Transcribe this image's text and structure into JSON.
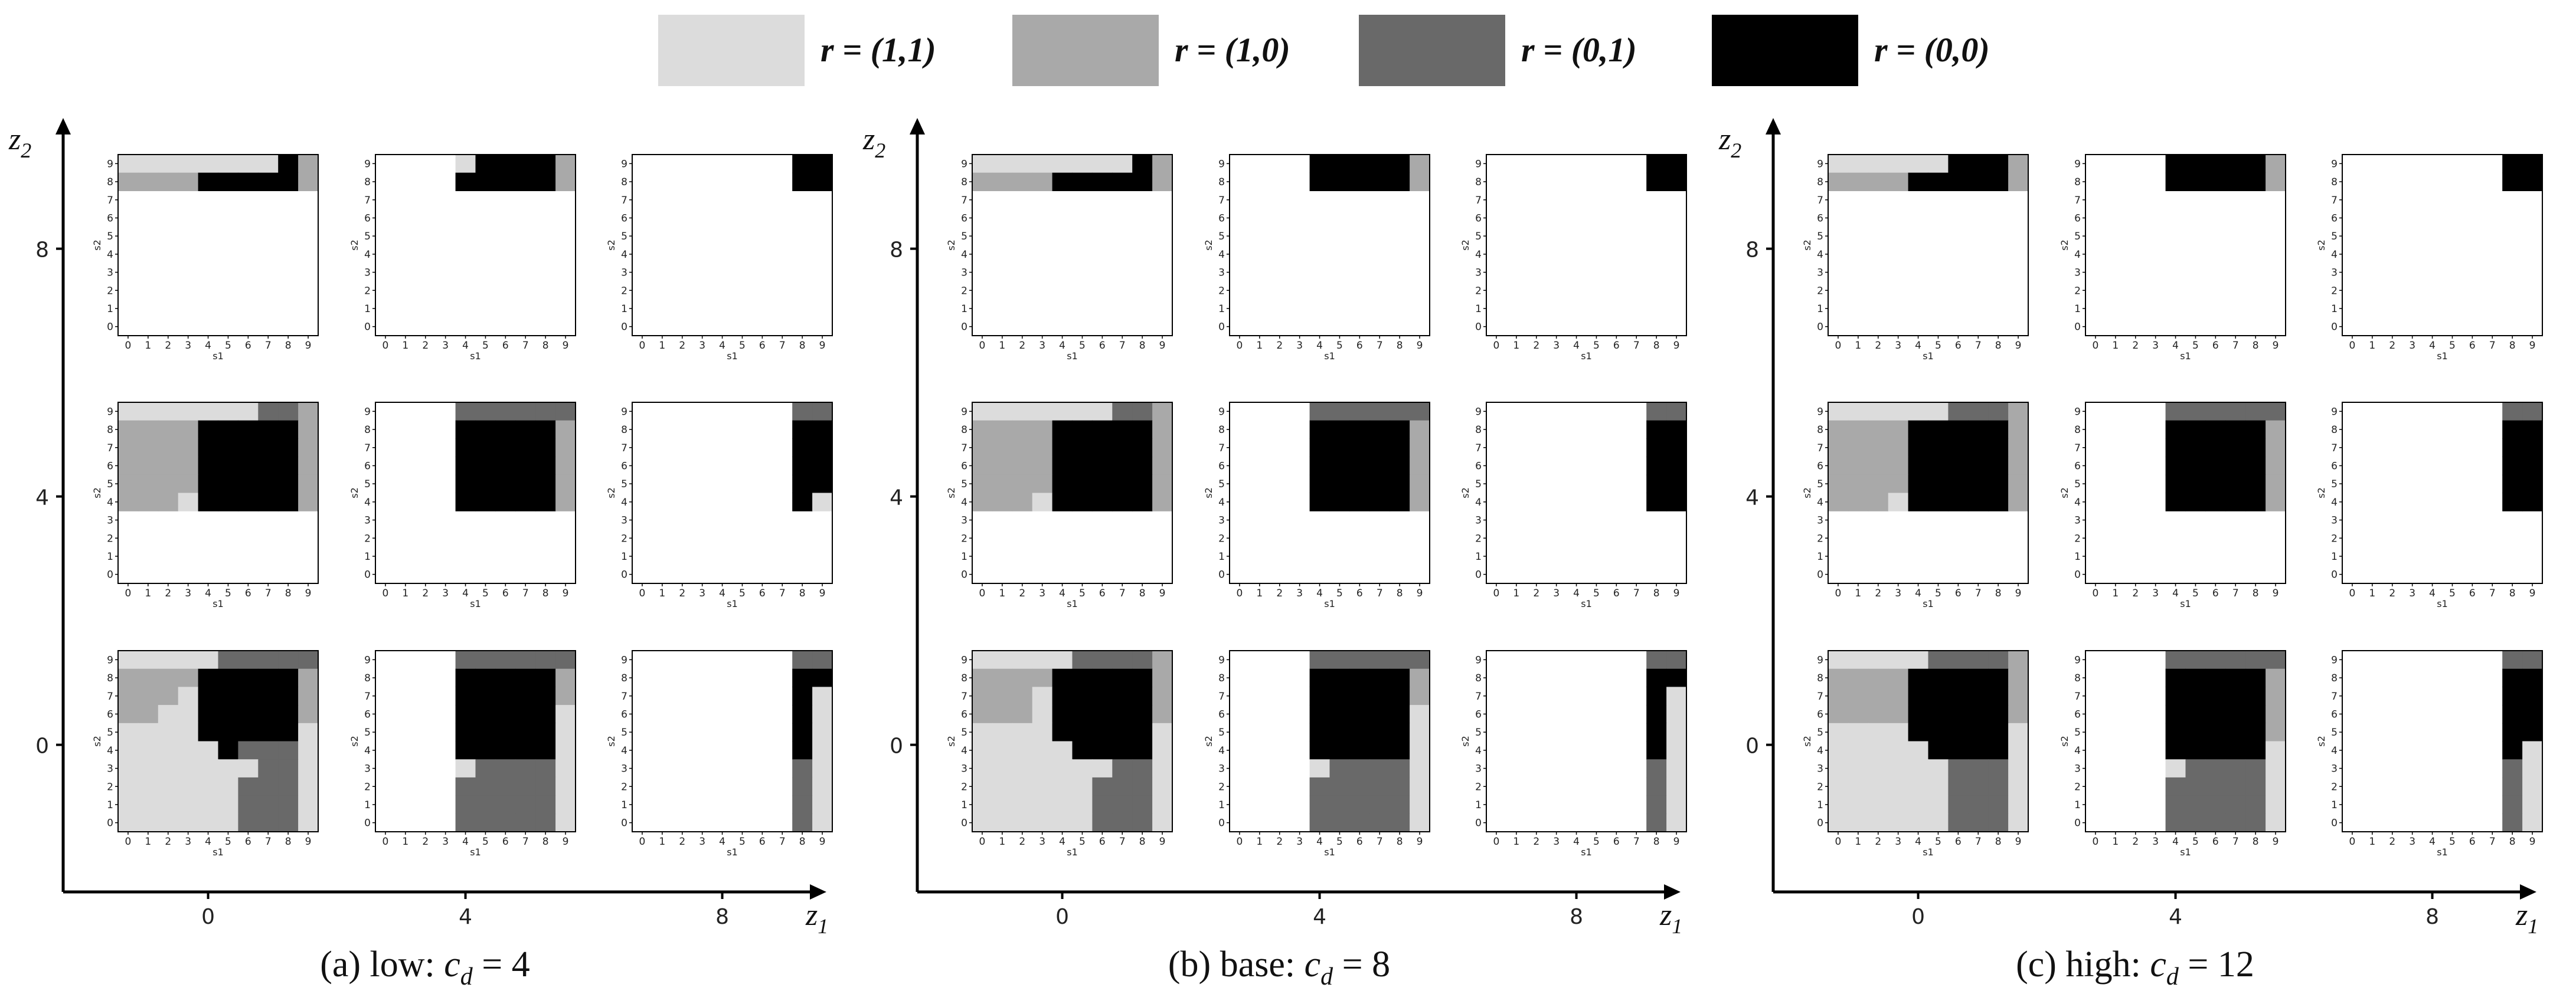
{
  "legend": [
    {
      "code": "11",
      "label": "r = (1,1)",
      "color": "#dcdcdc"
    },
    {
      "code": "10",
      "label": "r = (1,0)",
      "color": "#a9a9a9"
    },
    {
      "code": "01",
      "label": "r = (0,1)",
      "color": "#696969"
    },
    {
      "code": "00",
      "label": "r = (0,0)",
      "color": "#000000"
    }
  ],
  "chart_data": [
    {
      "type": "heatmap",
      "caption": "(a) low: c_d = 4",
      "outer_axes": {
        "xlabel": "z1",
        "ylabel": "z2",
        "xticks": [
          "0",
          "4",
          "8"
        ],
        "yticks": [
          "8",
          "4",
          "0"
        ]
      },
      "subplot_axes": {
        "xlabel": "s1",
        "ylabel": "s2",
        "ticks": [
          "0",
          "1",
          "2",
          "3",
          "4",
          "5",
          "6",
          "7",
          "8",
          "9"
        ]
      },
      "cells_note": "grid rows listed from s2=9 (top) down to s2=0; each string gives s1=0..9; A=(1,1) B=(1,0) C=(0,1) D=(0,0) .=none",
      "panels": [
        {
          "z1": 0,
          "z2": 8,
          "grid": [
            "AAAAAAAADB",
            "BBBBDDDDDB",
            "..........",
            "..........",
            "..........",
            "..........",
            "..........",
            "..........",
            "..........",
            ".........."
          ]
        },
        {
          "z1": 4,
          "z2": 8,
          "grid": [
            "....ADDDDB",
            "....DDDDDB",
            "..........",
            "..........",
            "..........",
            "..........",
            "..........",
            "..........",
            "..........",
            ".........."
          ]
        },
        {
          "z1": 8,
          "z2": 8,
          "grid": [
            "........DD",
            "........DD",
            "..........",
            "..........",
            "..........",
            "..........",
            "..........",
            "..........",
            "..........",
            ".........."
          ]
        },
        {
          "z1": 0,
          "z2": 4,
          "grid": [
            "AAAAAAACCB",
            "BBBBDDDDDB",
            "BBBBDDDDDB",
            "BBBBDDDDDB",
            "BBBBDDDDDB",
            "BBBADDDDDB",
            "..........",
            "..........",
            "..........",
            ".........."
          ]
        },
        {
          "z1": 4,
          "z2": 4,
          "grid": [
            "....CCCCCC",
            "....DDDDDB",
            "....DDDDDB",
            "....DDDDDB",
            "....DDDDDB",
            "....DDDDDB",
            "..........",
            "..........",
            "..........",
            ".........."
          ]
        },
        {
          "z1": 8,
          "z2": 4,
          "grid": [
            "........CC",
            "........DD",
            "........DD",
            "........DD",
            "........DD",
            "........DA",
            "..........",
            "..........",
            "..........",
            ".........."
          ]
        },
        {
          "z1": 0,
          "z2": 0,
          "grid": [
            "AAAAACCCCC",
            "BBBBDDDDDB",
            "BBBADDDDDB",
            "BBAADDDDDB",
            "AAAADDDDDA",
            "AAAAADCCCA",
            "AAAAAAACCA",
            "AAAAAACCCA",
            "AAAAAACCCA",
            "AAAAAACCCA"
          ]
        },
        {
          "z1": 4,
          "z2": 0,
          "grid": [
            "....CCCCCC",
            "....DDDDDB",
            "....DDDDDB",
            "....DDDDDA",
            "....DDDDDA",
            "....DDDDDA",
            "....ACCCCA",
            "....CCCCCA",
            "....CCCCCA",
            "....CCCCCA"
          ]
        },
        {
          "z1": 8,
          "z2": 0,
          "grid": [
            "........CC",
            "........DD",
            "........DA",
            "........DA",
            "........DA",
            "........DA",
            "........CA",
            "........CA",
            "........CA",
            "........CA"
          ]
        }
      ]
    },
    {
      "type": "heatmap",
      "caption": "(b) base: c_d = 8",
      "outer_axes": {
        "xlabel": "z1",
        "ylabel": "z2",
        "xticks": [
          "0",
          "4",
          "8"
        ],
        "yticks": [
          "8",
          "4",
          "0"
        ]
      },
      "subplot_axes": {
        "xlabel": "s1",
        "ylabel": "s2",
        "ticks": [
          "0",
          "1",
          "2",
          "3",
          "4",
          "5",
          "6",
          "7",
          "8",
          "9"
        ]
      },
      "panels": [
        {
          "z1": 0,
          "z2": 8,
          "grid": [
            "AAAAAAAADB",
            "BBBBDDDDDB",
            "..........",
            "..........",
            "..........",
            "..........",
            "..........",
            "..........",
            "..........",
            ".........."
          ]
        },
        {
          "z1": 4,
          "z2": 8,
          "grid": [
            "....DDDDDB",
            "....DDDDDB",
            "..........",
            "..........",
            "..........",
            "..........",
            "..........",
            "..........",
            "..........",
            ".........."
          ]
        },
        {
          "z1": 8,
          "z2": 8,
          "grid": [
            "........DD",
            "........DD",
            "..........",
            "..........",
            "..........",
            "..........",
            "..........",
            "..........",
            "..........",
            ".........."
          ]
        },
        {
          "z1": 0,
          "z2": 4,
          "grid": [
            "AAAAAAACCB",
            "BBBBDDDDDB",
            "BBBBDDDDDB",
            "BBBBDDDDDB",
            "BBBBDDDDDB",
            "BBBADDDDDB",
            "..........",
            "..........",
            "..........",
            ".........."
          ]
        },
        {
          "z1": 4,
          "z2": 4,
          "grid": [
            "....CCCCCC",
            "....DDDDDB",
            "....DDDDDB",
            "....DDDDDB",
            "....DDDDDB",
            "....DDDDDB",
            "..........",
            "..........",
            "..........",
            ".........."
          ]
        },
        {
          "z1": 8,
          "z2": 4,
          "grid": [
            "........CC",
            "........DD",
            "........DD",
            "........DD",
            "........DD",
            "........DD",
            "..........",
            "..........",
            "..........",
            ".........."
          ]
        },
        {
          "z1": 0,
          "z2": 0,
          "grid": [
            "AAAAACCCCB",
            "BBBBDDDDDB",
            "BBBADDDDDB",
            "BBBADDDDDB",
            "AAAADDDDDA",
            "AAAAADDDDA",
            "AAAAAAACCA",
            "AAAAAACCCA",
            "AAAAAACCCA",
            "AAAAAACCCA"
          ]
        },
        {
          "z1": 4,
          "z2": 0,
          "grid": [
            "....CCCCCC",
            "....DDDDDB",
            "....DDDDDB",
            "....DDDDDA",
            "....DDDDDA",
            "....DDDDDA",
            "....ACCCCA",
            "....CCCCCA",
            "....CCCCCA",
            "....CCCCCA"
          ]
        },
        {
          "z1": 8,
          "z2": 0,
          "grid": [
            "........CC",
            "........DD",
            "........DA",
            "........DA",
            "........DA",
            "........DA",
            "........CA",
            "........CA",
            "........CA",
            "........CA"
          ]
        }
      ]
    },
    {
      "type": "heatmap",
      "caption": "(c) high: c_d = 12",
      "outer_axes": {
        "xlabel": "z1",
        "ylabel": "z2",
        "xticks": [
          "0",
          "4",
          "8"
        ],
        "yticks": [
          "8",
          "4",
          "0"
        ]
      },
      "subplot_axes": {
        "xlabel": "s1",
        "ylabel": "s2",
        "ticks": [
          "0",
          "1",
          "2",
          "3",
          "4",
          "5",
          "6",
          "7",
          "8",
          "9"
        ]
      },
      "panels": [
        {
          "z1": 0,
          "z2": 8,
          "grid": [
            "AAAAAADDDB",
            "BBBBDDDDDB",
            "..........",
            "..........",
            "..........",
            "..........",
            "..........",
            "..........",
            "..........",
            ".........."
          ]
        },
        {
          "z1": 4,
          "z2": 8,
          "grid": [
            "....DDDDDB",
            "....DDDDDB",
            "..........",
            "..........",
            "..........",
            "..........",
            "..........",
            "..........",
            "..........",
            ".........."
          ]
        },
        {
          "z1": 8,
          "z2": 8,
          "grid": [
            "........DD",
            "........DD",
            "..........",
            "..........",
            "..........",
            "..........",
            "..........",
            "..........",
            "..........",
            ".........."
          ]
        },
        {
          "z1": 0,
          "z2": 4,
          "grid": [
            "AAAAAACCCB",
            "BBBBDDDDDB",
            "BBBBDDDDDB",
            "BBBBDDDDDB",
            "BBBBDDDDDB",
            "BBBADDDDDB",
            "..........",
            "..........",
            "..........",
            ".........."
          ]
        },
        {
          "z1": 4,
          "z2": 4,
          "grid": [
            "....CCCCCC",
            "....DDDDDB",
            "....DDDDDB",
            "....DDDDDB",
            "....DDDDDB",
            "....DDDDDB",
            "..........",
            "..........",
            "..........",
            ".........."
          ]
        },
        {
          "z1": 8,
          "z2": 4,
          "grid": [
            "........CC",
            "........DD",
            "........DD",
            "........DD",
            "........DD",
            "........DD",
            "..........",
            "..........",
            "..........",
            ".........."
          ]
        },
        {
          "z1": 0,
          "z2": 0,
          "grid": [
            "AAAAACCCCB",
            "BBBBDDDDDB",
            "BBBBDDDDDB",
            "BBBBDDDDDB",
            "AAAADDDDDA",
            "AAAAADDDDA",
            "AAAAAACCCA",
            "AAAAAACCCA",
            "AAAAAACCCA",
            "AAAAAACCCA"
          ]
        },
        {
          "z1": 4,
          "z2": 0,
          "grid": [
            "....CCCCCC",
            "....DDDDDB",
            "....DDDDDB",
            "....DDDDDB",
            "....DDDDDB",
            "....DDDDDA",
            "....ACCCCA",
            "....CCCCCA",
            "....CCCCCA",
            "....CCCCCA"
          ]
        },
        {
          "z1": 8,
          "z2": 0,
          "grid": [
            "........CC",
            "........DD",
            "........DD",
            "........DD",
            "........DD",
            "........DA",
            "........CA",
            "........CA",
            "........CA",
            "........CA"
          ]
        }
      ]
    }
  ]
}
